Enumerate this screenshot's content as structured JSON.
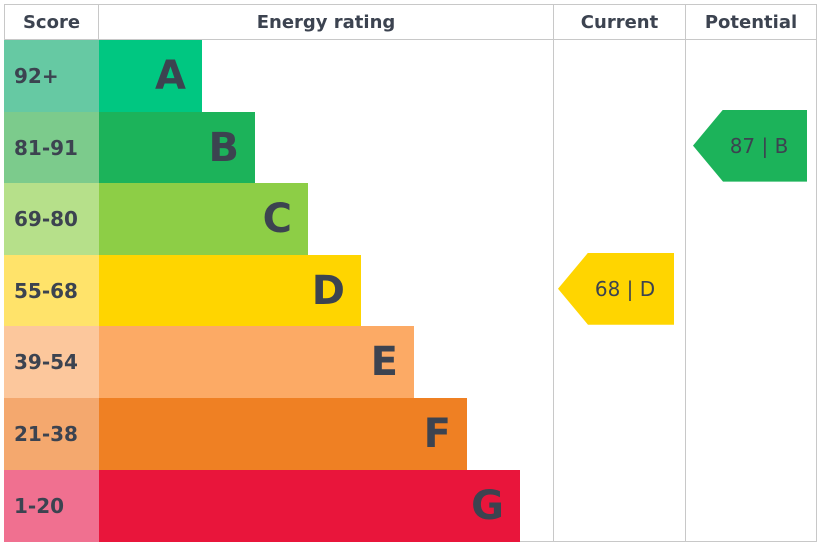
{
  "headers": {
    "score": "Score",
    "rating": "Energy rating",
    "current": "Current",
    "potential": "Potential"
  },
  "chart_data": {
    "type": "bar",
    "bands": [
      {
        "letter": "A",
        "range": "92+",
        "color": "#00c781",
        "score_color": "#66c9a3"
      },
      {
        "letter": "B",
        "range": "81-91",
        "color": "#1cb35a",
        "score_color": "#7ccb8c"
      },
      {
        "letter": "C",
        "range": "69-80",
        "color": "#8dce46",
        "score_color": "#b6e08a"
      },
      {
        "letter": "D",
        "range": "55-68",
        "color": "#ffd500",
        "score_color": "#ffe36a"
      },
      {
        "letter": "E",
        "range": "39-54",
        "color": "#fcaa65",
        "score_color": "#fcc79c"
      },
      {
        "letter": "F",
        "range": "21-38",
        "color": "#ef8023",
        "score_color": "#f4a86e"
      },
      {
        "letter": "G",
        "range": "1-20",
        "color": "#e9153b",
        "score_color": "#f07090"
      }
    ],
    "current": {
      "value": 68,
      "band": "D",
      "label": "68 | D",
      "color": "#ffd500"
    },
    "potential": {
      "value": 87,
      "band": "B",
      "label": "87 | B",
      "color": "#1cb35a"
    }
  }
}
